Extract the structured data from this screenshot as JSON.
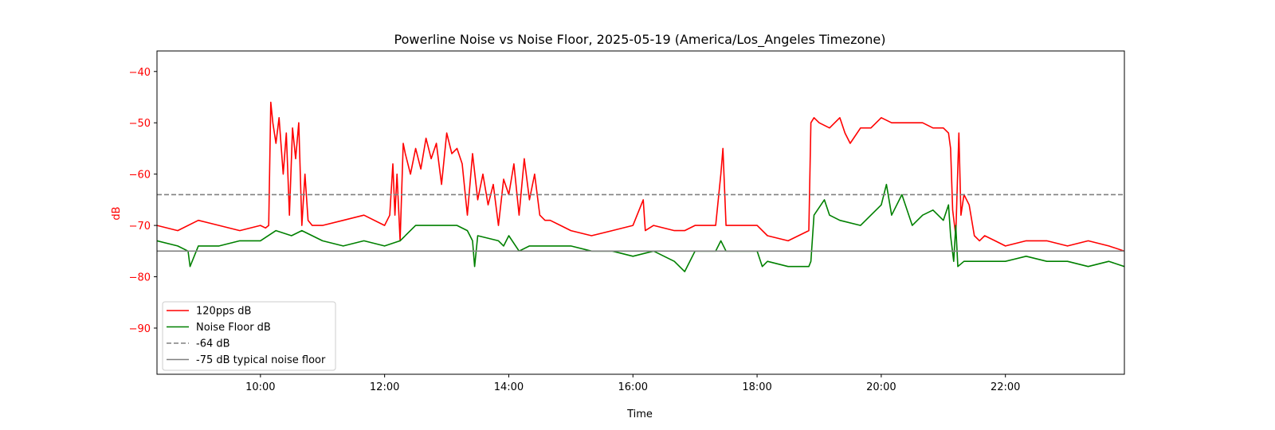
{
  "chart_data": {
    "type": "line",
    "title": "Powerline Noise vs Noise Floor, 2025-05-19 (America/Los_Angeles Timezone)",
    "xlabel": "Time",
    "ylabel": "dB",
    "xlim": [
      "08:20",
      "23:55"
    ],
    "ylim": [
      -99,
      -36
    ],
    "x_ticks": [
      "10:00",
      "12:00",
      "14:00",
      "16:00",
      "18:00",
      "20:00",
      "22:00"
    ],
    "y_ticks": [
      -40,
      -50,
      -60,
      -70,
      -80,
      -90
    ],
    "grid": false,
    "legend_position": "lower-left",
    "ylabel_color": "#ff0000",
    "series": [
      {
        "name": "120pps dB",
        "color": "#ff0000",
        "style": "solid",
        "x": [
          "08:20",
          "08:40",
          "09:00",
          "09:20",
          "09:40",
          "10:00",
          "10:05",
          "10:08",
          "10:10",
          "10:12",
          "10:15",
          "10:18",
          "10:22",
          "10:25",
          "10:28",
          "10:31",
          "10:34",
          "10:37",
          "10:40",
          "10:43",
          "10:46",
          "10:50",
          "11:00",
          "11:20",
          "11:40",
          "12:00",
          "12:05",
          "12:08",
          "12:10",
          "12:12",
          "12:15",
          "12:18",
          "12:20",
          "12:25",
          "12:30",
          "12:35",
          "12:40",
          "12:45",
          "12:50",
          "12:55",
          "13:00",
          "13:05",
          "13:10",
          "13:15",
          "13:20",
          "13:25",
          "13:30",
          "13:35",
          "13:40",
          "13:45",
          "13:50",
          "13:55",
          "14:00",
          "14:05",
          "14:10",
          "14:15",
          "14:20",
          "14:25",
          "14:30",
          "14:35",
          "14:40",
          "14:50",
          "15:00",
          "15:20",
          "15:40",
          "16:00",
          "16:10",
          "16:12",
          "16:20",
          "16:40",
          "16:50",
          "17:00",
          "17:20",
          "17:25",
          "17:27",
          "17:30",
          "17:40",
          "18:00",
          "18:10",
          "18:30",
          "18:50",
          "18:52",
          "18:55",
          "19:00",
          "19:10",
          "19:20",
          "19:25",
          "19:30",
          "19:40",
          "19:50",
          "20:00",
          "20:10",
          "20:20",
          "20:30",
          "20:40",
          "20:50",
          "21:00",
          "21:05",
          "21:07",
          "21:09",
          "21:12",
          "21:15",
          "21:17",
          "21:20",
          "21:25",
          "21:30",
          "21:35",
          "21:40",
          "21:50",
          "22:00",
          "22:20",
          "22:40",
          "23:00",
          "23:20",
          "23:40",
          "23:55"
        ],
        "values": [
          -70,
          -71,
          -69,
          -70,
          -71,
          -70,
          -70.5,
          -70,
          -46,
          -50,
          -54,
          -49,
          -60,
          -52,
          -68,
          -51,
          -57,
          -50,
          -70,
          -60,
          -69,
          -70,
          -70,
          -69,
          -68,
          -70,
          -68,
          -58,
          -68,
          -60,
          -73,
          -54,
          -56,
          -60,
          -55,
          -59,
          -53,
          -57,
          -54,
          -62,
          -52,
          -56,
          -55,
          -58,
          -68,
          -56,
          -65,
          -60,
          -66,
          -62,
          -70,
          -61,
          -64,
          -58,
          -68,
          -57,
          -65,
          -60,
          -68,
          -69,
          -69,
          -70,
          -71,
          -72,
          -71,
          -70,
          -65,
          -71,
          -70,
          -71,
          -71,
          -70,
          -70,
          -60,
          -55,
          -70,
          -70,
          -70,
          -72,
          -73,
          -71,
          -50,
          -49,
          -50,
          -51,
          -49,
          -52,
          -54,
          -51,
          -51,
          -49,
          -50,
          -50,
          -50,
          -50,
          -51,
          -51,
          -52,
          -55,
          -67,
          -72,
          -52,
          -68,
          -64,
          -66,
          -72,
          -73,
          -72,
          -73,
          -74,
          -73,
          -73,
          -74,
          -73,
          -74,
          -75
        ]
      },
      {
        "name": "Noise Floor dB",
        "color": "#008000",
        "style": "solid",
        "x": [
          "08:20",
          "08:40",
          "08:50",
          "08:52",
          "09:00",
          "09:20",
          "09:40",
          "10:00",
          "10:15",
          "10:30",
          "10:40",
          "11:00",
          "11:20",
          "11:40",
          "12:00",
          "12:15",
          "12:30",
          "12:50",
          "13:10",
          "13:20",
          "13:25",
          "13:27",
          "13:30",
          "13:50",
          "13:55",
          "14:00",
          "14:10",
          "14:20",
          "14:30",
          "14:40",
          "15:00",
          "15:20",
          "15:40",
          "16:00",
          "16:20",
          "16:40",
          "16:50",
          "17:00",
          "17:20",
          "17:25",
          "17:30",
          "17:50",
          "18:00",
          "18:05",
          "18:10",
          "18:30",
          "18:50",
          "18:52",
          "18:55",
          "19:05",
          "19:10",
          "19:20",
          "19:40",
          "19:50",
          "20:00",
          "20:05",
          "20:10",
          "20:20",
          "20:30",
          "20:40",
          "20:50",
          "21:00",
          "21:05",
          "21:07",
          "21:10",
          "21:12",
          "21:14",
          "21:20",
          "21:40",
          "22:00",
          "22:20",
          "22:40",
          "23:00",
          "23:20",
          "23:40",
          "23:55"
        ],
        "values": [
          -73,
          -74,
          -75,
          -78,
          -74,
          -74,
          -73,
          -73,
          -71,
          -72,
          -71,
          -73,
          -74,
          -73,
          -74,
          -73,
          -70,
          -70,
          -70,
          -71,
          -73,
          -78,
          -72,
          -73,
          -74,
          -72,
          -75,
          -74,
          -74,
          -74,
          -74,
          -75,
          -75,
          -76,
          -75,
          -77,
          -79,
          -75,
          -75,
          -73,
          -75,
          -75,
          -75,
          -78,
          -77,
          -78,
          -78,
          -77,
          -68,
          -65,
          -68,
          -69,
          -70,
          -68,
          -66,
          -62,
          -68,
          -64,
          -70,
          -68,
          -67,
          -69,
          -66,
          -72,
          -77,
          -70,
          -78,
          -77,
          -77,
          -77,
          -76,
          -77,
          -77,
          -78,
          -77,
          -78
        ]
      },
      {
        "name": "-64 dB",
        "color": "#808080",
        "style": "dashed",
        "y": -64
      },
      {
        "name": "-75 dB typical noise floor",
        "color": "#808080",
        "style": "solid",
        "y": -75
      }
    ]
  }
}
